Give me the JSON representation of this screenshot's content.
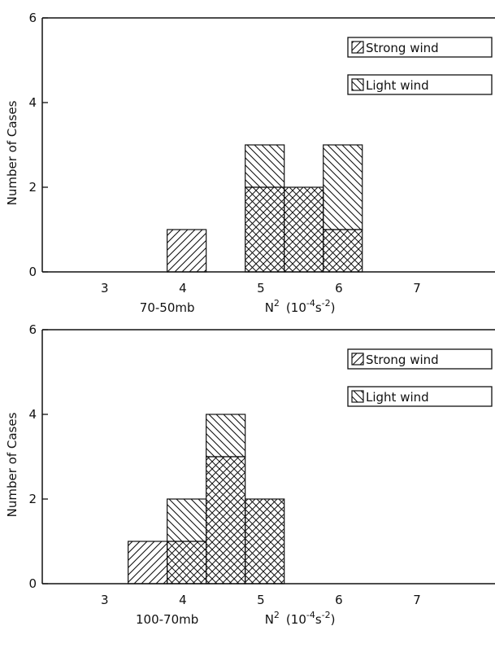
{
  "chart_data": [
    {
      "type": "bar",
      "stacked": true,
      "panel_label": "70-50mb",
      "xlabel_prefix": "N",
      "xlabel_exp": "2",
      "xlabel_unit_open": "(10",
      "xlabel_unit_exp1": "-4",
      "xlabel_unit_mid": "s",
      "xlabel_unit_exp2": "-2",
      "xlabel_unit_close": ")",
      "ylabel": "Number of Cases",
      "xticks": [
        "3",
        "4",
        "5",
        "6",
        "7"
      ],
      "yticks": [
        "0",
        "2",
        "4",
        "6"
      ],
      "xlim": [
        2.2,
        8.0
      ],
      "ylim": [
        0,
        6
      ],
      "bin_width": 0.5,
      "legend": [
        "Strong wind",
        "Light wind"
      ],
      "legend_position": "top-right",
      "bins": [
        {
          "x0": 3.8,
          "light": 0,
          "strong": 1
        },
        {
          "x0": 4.8,
          "light": 2,
          "strong": 1
        },
        {
          "x0": 5.3,
          "light": 2,
          "strong": 0
        },
        {
          "x0": 5.8,
          "light": 1,
          "strong": 2
        }
      ]
    },
    {
      "type": "bar",
      "stacked": true,
      "panel_label": "100-70mb",
      "xlabel_prefix": "N",
      "xlabel_exp": "2",
      "xlabel_unit_open": "(10",
      "xlabel_unit_exp1": "-4",
      "xlabel_unit_mid": "s",
      "xlabel_unit_exp2": "-2",
      "xlabel_unit_close": ")",
      "ylabel": "Number of Cases",
      "xticks": [
        "3",
        "4",
        "5",
        "6",
        "7"
      ],
      "yticks": [
        "0",
        "2",
        "4",
        "6"
      ],
      "xlim": [
        2.2,
        8.0
      ],
      "ylim": [
        0,
        6
      ],
      "bin_width": 0.5,
      "legend": [
        "Strong wind",
        "Light wind"
      ],
      "legend_position": "top-right",
      "bins": [
        {
          "x0": 3.3,
          "light": 0,
          "strong": 1
        },
        {
          "x0": 3.8,
          "light": 1,
          "strong": 1
        },
        {
          "x0": 4.3,
          "light": 3,
          "strong": 1
        },
        {
          "x0": 4.8,
          "light": 2,
          "strong": 0
        }
      ]
    }
  ],
  "colors": {
    "ink": "#111111",
    "background": "#ffffff"
  }
}
